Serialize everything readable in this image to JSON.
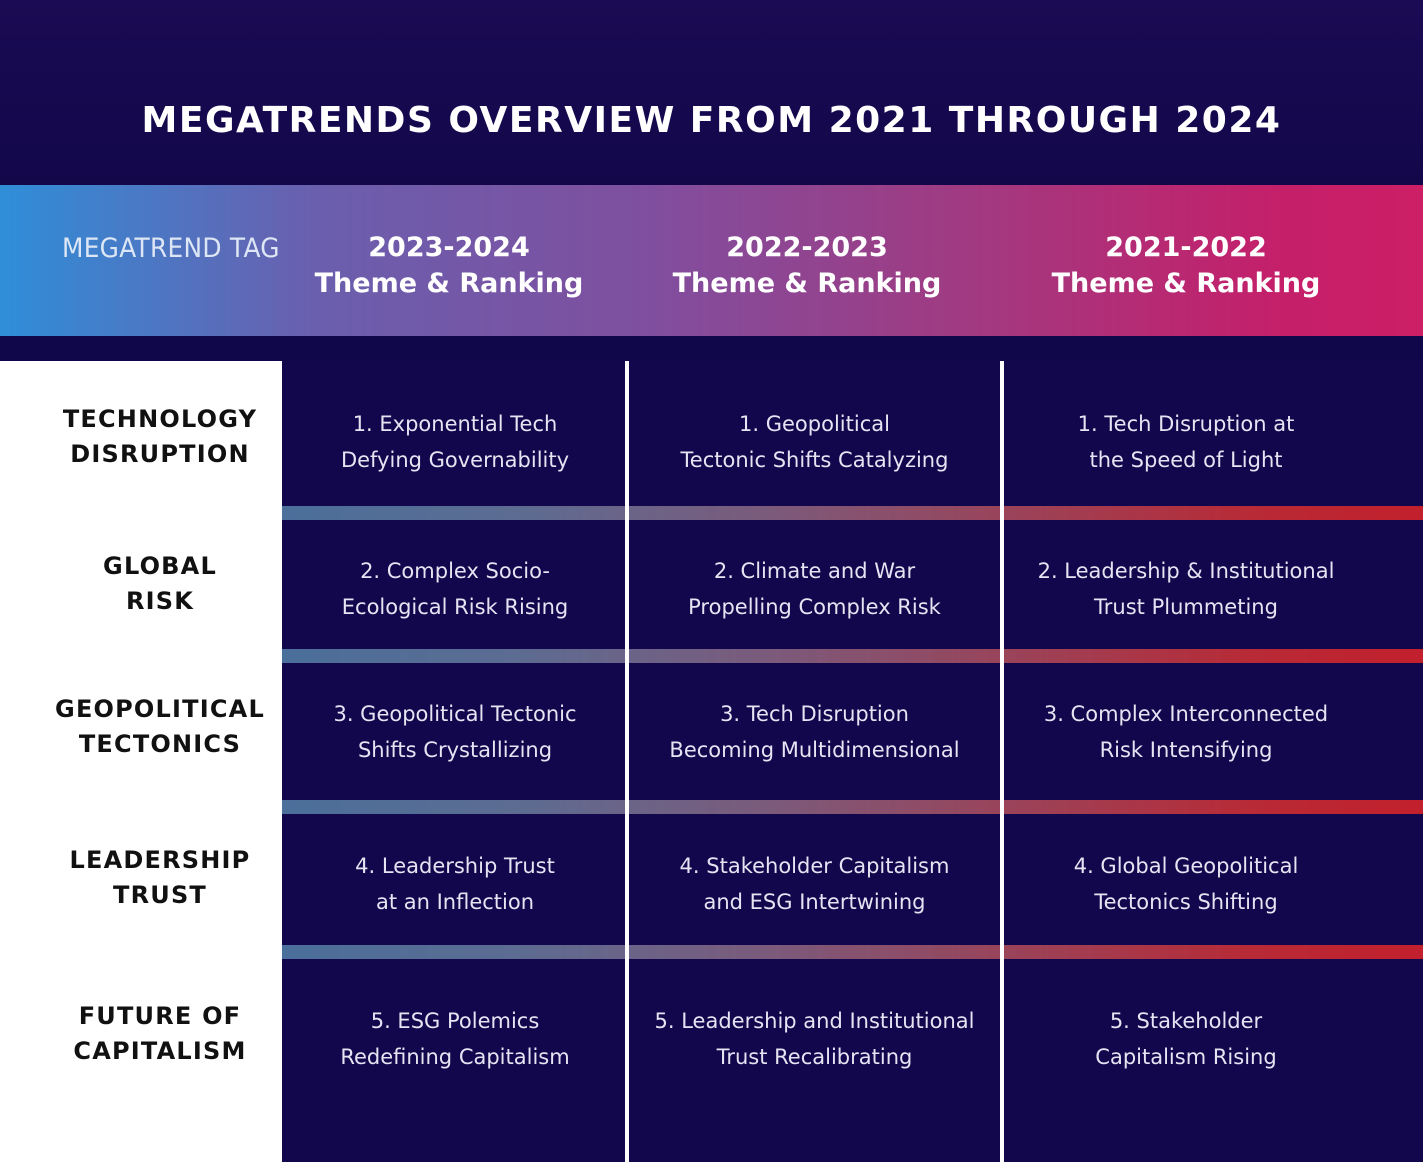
{
  "title": "MEGATRENDS OVERVIEW FROM 2021 THROUGH 2024",
  "header": {
    "tag_label": "MEGATREND TAG",
    "columns": [
      {
        "years": "2023-2024",
        "subtitle": "Theme & Ranking"
      },
      {
        "years": "2022-2023",
        "subtitle": "Theme & Ranking"
      },
      {
        "years": "2021-2022",
        "subtitle": "Theme & Ranking"
      }
    ]
  },
  "rows": [
    {
      "tag": [
        "TECHNOLOGY",
        "DISRUPTION"
      ],
      "cells": [
        [
          "1. Exponential Tech",
          "Defying Governability"
        ],
        [
          "1. Geopolitical",
          "Tectonic Shifts Catalyzing"
        ],
        [
          "1. Tech Disruption at",
          "the Speed of Light"
        ]
      ]
    },
    {
      "tag": [
        "GLOBAL",
        "RISK"
      ],
      "cells": [
        [
          "2. Complex Socio-",
          "Ecological Risk Rising"
        ],
        [
          "2. Climate and War",
          "Propelling Complex Risk"
        ],
        [
          "2. Leadership & Institutional",
          "Trust Plummeting"
        ]
      ]
    },
    {
      "tag": [
        "GEOPOLITICAL",
        "TECTONICS"
      ],
      "cells": [
        [
          "3. Geopolitical Tectonic",
          "Shifts Crystallizing"
        ],
        [
          "3. Tech Disruption",
          "Becoming Multidimensional"
        ],
        [
          "3. Complex Interconnected",
          "Risk Intensifying"
        ]
      ]
    },
    {
      "tag": [
        "LEADERSHIP",
        "TRUST"
      ],
      "cells": [
        [
          "4. Leadership Trust",
          "at an Inflection"
        ],
        [
          "4. Stakeholder Capitalism",
          "and ESG Intertwining"
        ],
        [
          "4. Global Geopolitical",
          "Tectonics Shifting"
        ]
      ]
    },
    {
      "tag": [
        "FUTURE OF",
        "CAPITALISM"
      ],
      "cells": [
        [
          "5. ESG Polemics",
          "Redefining Capitalism"
        ],
        [
          "5. Leadership and Institutional",
          "Trust Recalibrating"
        ],
        [
          "5. Stakeholder",
          "Capitalism Rising"
        ]
      ]
    }
  ],
  "colors": {
    "background": "#0f0648",
    "header_gradient_start": "#2f8ed8",
    "header_gradient_end": "#cc1f66",
    "separator_end": "#c2202c",
    "tag_panel": "#ffffff"
  }
}
